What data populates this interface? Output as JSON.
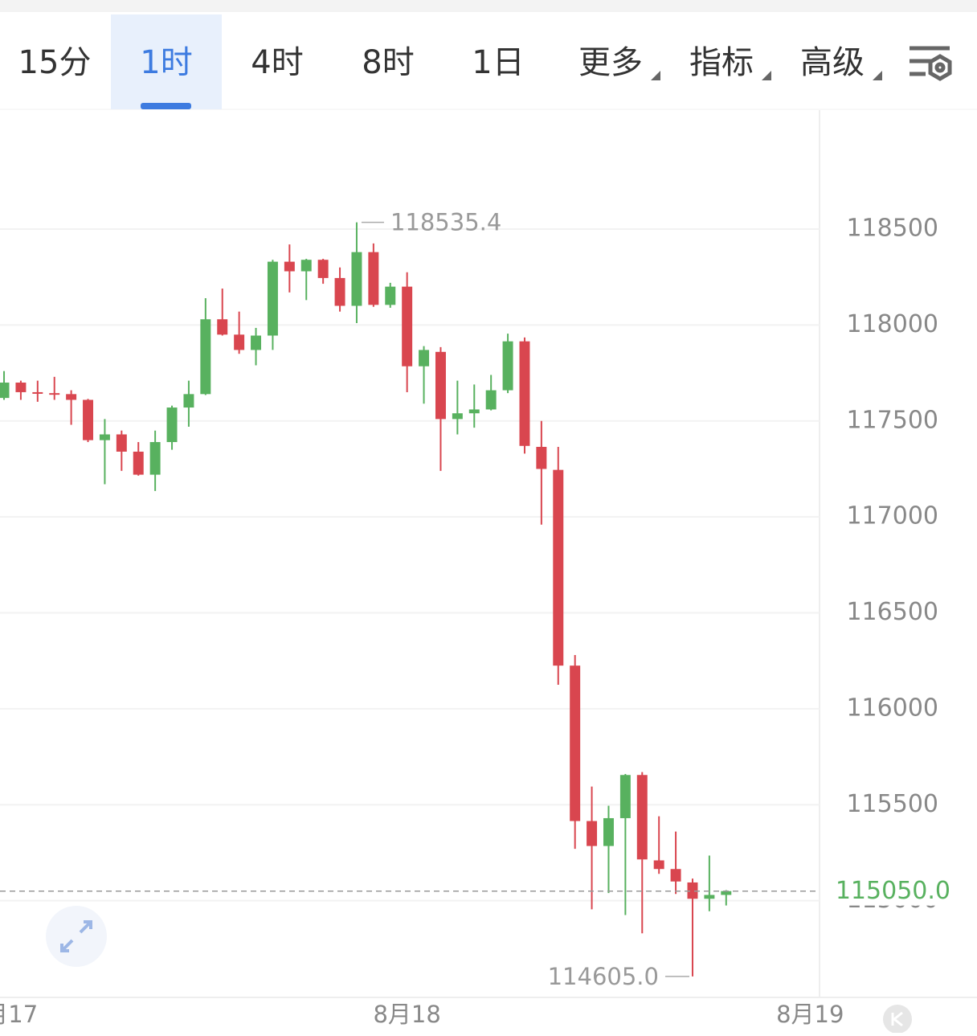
{
  "toolbar": {
    "tabs": [
      "15分",
      "1时",
      "4时",
      "8时",
      "1日",
      "更多",
      "指标",
      "高级"
    ],
    "active": 1,
    "dropdown_from": 5
  },
  "chart_data": {
    "type": "candlestick",
    "x": [
      0,
      1,
      2,
      3,
      4,
      5,
      6,
      7,
      8,
      9,
      10,
      11,
      12,
      13,
      14,
      15,
      16,
      17,
      18,
      19,
      20,
      21,
      22,
      23,
      24,
      25,
      26,
      27,
      28,
      29,
      30,
      31,
      32,
      33,
      34,
      35,
      36,
      37,
      38,
      39,
      40,
      41,
      42,
      43
    ],
    "open": [
      117620,
      117700,
      117650,
      117645,
      117640,
      117610,
      117400,
      117430,
      117340,
      117220,
      117390,
      117570,
      117640,
      118030,
      117950,
      117870,
      117945,
      118330,
      118280,
      118340,
      118245,
      118100,
      118380,
      118105,
      118200,
      117785,
      117860,
      117510,
      117540,
      117560,
      117660,
      117915,
      117365,
      117245,
      116225,
      115415,
      115285,
      115430,
      115655,
      115210,
      115165,
      115095,
      115010,
      115030
    ],
    "high": [
      117760,
      117710,
      117710,
      117730,
      117660,
      117615,
      117510,
      117450,
      117390,
      117450,
      117580,
      117710,
      118140,
      118190,
      118070,
      117985,
      118340,
      118420,
      118345,
      118345,
      118300,
      118535.4,
      118425,
      118220,
      118275,
      117890,
      117885,
      117710,
      117690,
      117740,
      117955,
      117935,
      117500,
      117365,
      116280,
      115595,
      115495,
      115660,
      115670,
      115440,
      115360,
      115115,
      115235,
      115055
    ],
    "low": [
      117610,
      117610,
      117600,
      117610,
      117480,
      117390,
      117170,
      117240,
      117215,
      117135,
      117350,
      117470,
      117635,
      117945,
      117850,
      117790,
      117870,
      118170,
      118130,
      118215,
      118070,
      118010,
      118095,
      118090,
      117650,
      117590,
      117240,
      117430,
      117465,
      117555,
      117645,
      117330,
      116960,
      116125,
      115270,
      114955,
      115040,
      114925,
      114830,
      115140,
      115035,
      114605,
      114945,
      114975
    ],
    "close": [
      117700,
      117650,
      117645,
      117640,
      117610,
      117400,
      117430,
      117340,
      117220,
      117390,
      117570,
      117640,
      118030,
      117950,
      117870,
      117945,
      118330,
      118280,
      118340,
      118245,
      118100,
      118380,
      118105,
      118200,
      117785,
      117870,
      117510,
      117540,
      117560,
      117660,
      117915,
      117370,
      117250,
      116225,
      115415,
      115285,
      115430,
      115655,
      115215,
      115165,
      115100,
      115010,
      115030,
      115050
    ],
    "up_color": "#58b15f",
    "down_color": "#d9464f",
    "xlim": [
      -0.24,
      48.56
    ],
    "xticks": [
      {
        "value": 0,
        "label": "8月17"
      },
      {
        "value": 24,
        "label": "8月18"
      },
      {
        "value": 48,
        "label": "8月19"
      }
    ],
    "ylim": [
      114500,
      119120
    ],
    "yticks": [
      115000,
      115500,
      116000,
      116500,
      117000,
      117500,
      118000,
      118500
    ],
    "grid": true,
    "max_marker": {
      "value": 118535.4,
      "label": "118535.4"
    },
    "min_marker": {
      "value": 114605.0,
      "label": "114605.0"
    },
    "last_price": {
      "value": 115050,
      "label": "115050.0",
      "color": "#58b15f"
    }
  }
}
